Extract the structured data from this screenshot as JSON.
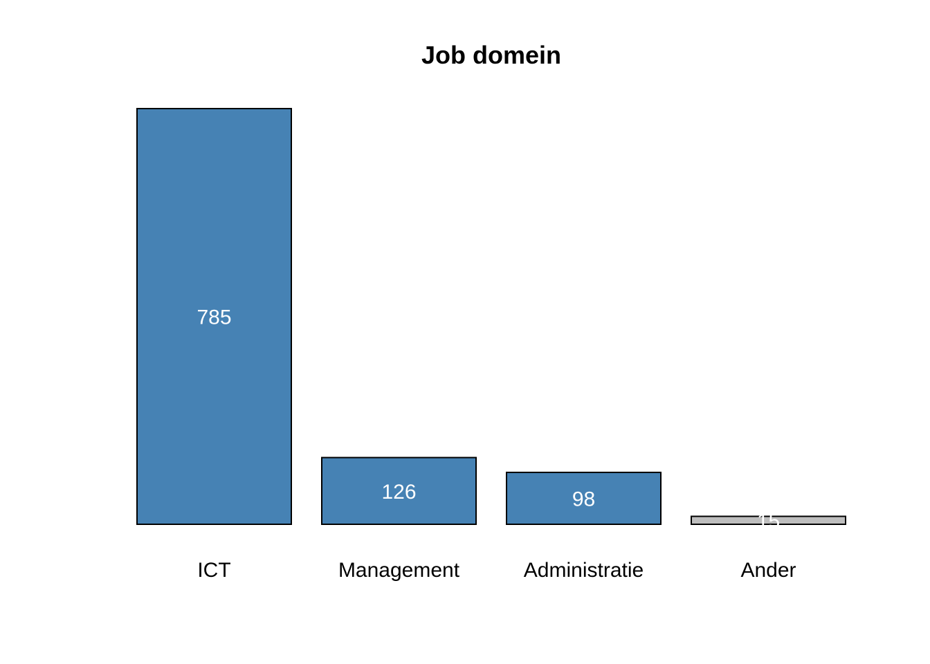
{
  "chart_data": {
    "type": "bar",
    "title": "Job domein",
    "xlabel": "",
    "ylabel": "",
    "categories": [
      "ICT",
      "Management",
      "Administratie",
      "Ander"
    ],
    "values": [
      785,
      126,
      98,
      15
    ],
    "data_labels": [
      "785",
      "126",
      "98",
      "15"
    ],
    "bar_colors": [
      "#4682B4",
      "#4682B4",
      "#4682B4",
      "#BEBEBE"
    ],
    "label_color": "#FFFFFF",
    "ylim": [
      0,
      785
    ],
    "grid": false,
    "legend": "none"
  }
}
